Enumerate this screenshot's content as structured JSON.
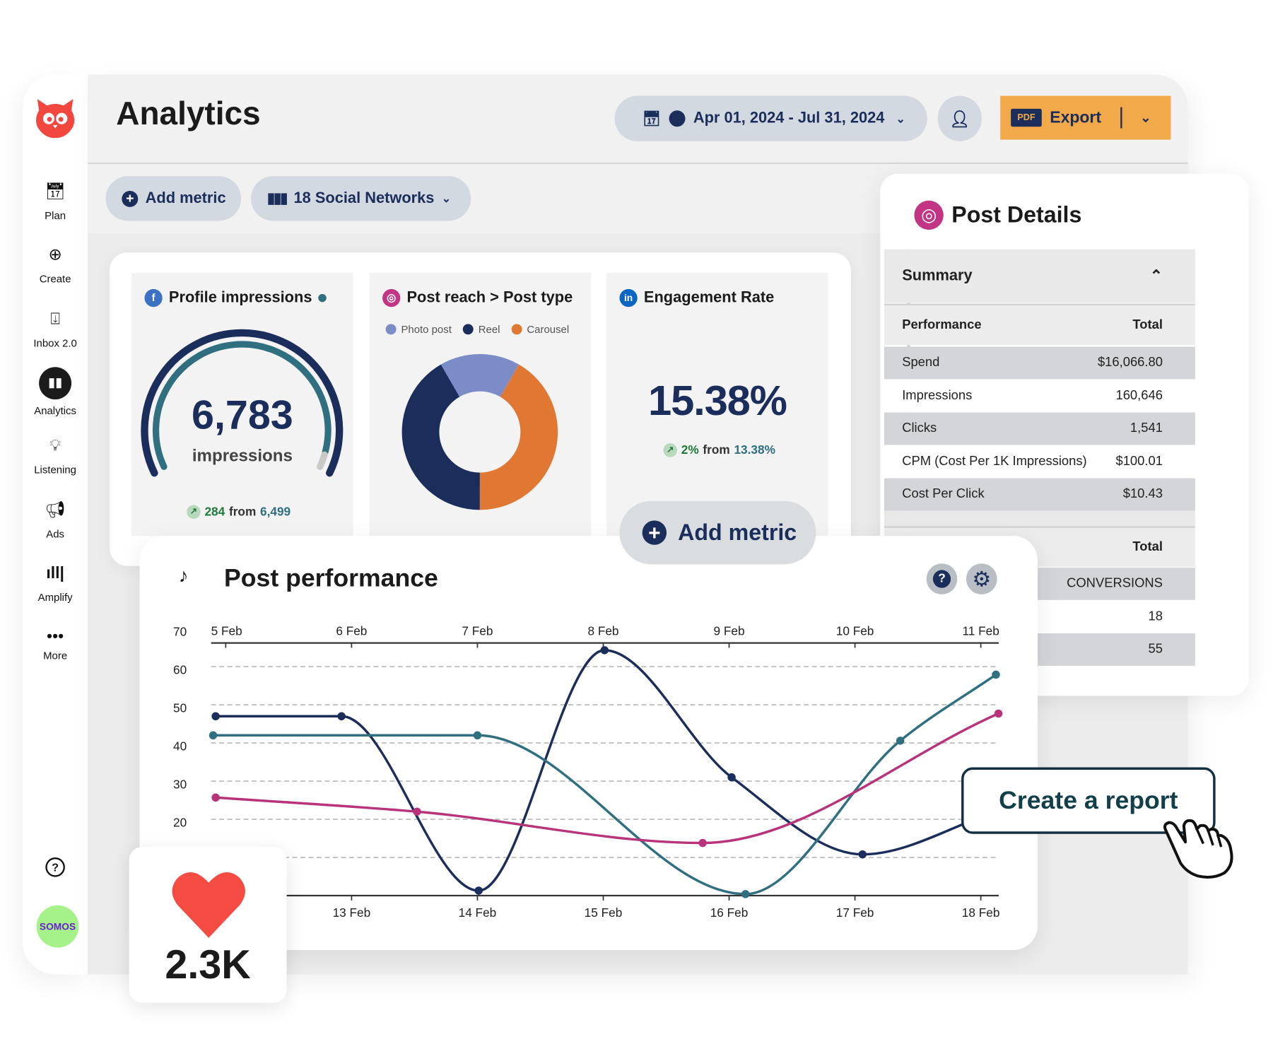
{
  "app": {
    "title": "Analytics",
    "logo": "hootsuite-owl-logo"
  },
  "sidebar": {
    "items": [
      {
        "label": "Plan",
        "icon": "calendar-icon"
      },
      {
        "label": "Create",
        "icon": "plus-circle-icon"
      },
      {
        "label": "Inbox 2.0",
        "icon": "inbox-icon"
      },
      {
        "label": "Analytics",
        "icon": "bar-chart-icon",
        "active": true
      },
      {
        "label": "Listening",
        "icon": "lightbulb-icon"
      },
      {
        "label": "Ads",
        "icon": "megaphone-icon"
      },
      {
        "label": "Amplify",
        "icon": "amplify-icon"
      },
      {
        "label": "More",
        "icon": "more-icon"
      }
    ],
    "help_icon": "question-icon",
    "avatar_text": "SOMOS"
  },
  "header": {
    "date_range": "Apr 01, 2024 - Jul 31, 2024",
    "export_label": "Export",
    "pdf_badge": "PDF"
  },
  "toolbar": {
    "add_metric": "Add metric",
    "networks": "18 Social Networks"
  },
  "cards": {
    "impressions": {
      "title": "Profile impressions",
      "value": "6,783",
      "unit": "impressions",
      "change": "284",
      "from_word": "from",
      "previous": "6,499",
      "gauge_fraction": 0.95
    },
    "post_reach": {
      "title": "Post reach > Post type",
      "legend": [
        "Photo post",
        "Reel",
        "Carousel"
      ]
    },
    "engagement": {
      "title": "Engagement Rate",
      "value": "15.38%",
      "change": "2%",
      "from_word": "from",
      "previous": "13.38%"
    },
    "add_metric": "Add metric"
  },
  "post_details": {
    "title": "Post Details",
    "summary": "Summary",
    "header": {
      "label": "Performance",
      "total": "Total"
    },
    "rows": [
      {
        "label": "Spend",
        "value": "$16,066.80"
      },
      {
        "label": "Impressions",
        "value": "160,646"
      },
      {
        "label": "Clicks",
        "value": "1,541"
      },
      {
        "label": "CPM (Cost Per 1K Impressions)",
        "value": "$100.01"
      },
      {
        "label": "Cost Per Click",
        "value": "$10.43"
      }
    ],
    "second_header": {
      "total": "Total"
    },
    "second_rows": [
      "CONVERSIONS",
      "18",
      "55"
    ]
  },
  "post_performance": {
    "title": "Post performance",
    "help_icon": "question-icon",
    "settings_icon": "gear-icon"
  },
  "likes": {
    "value": "2.3K",
    "icon": "heart-icon"
  },
  "cta": {
    "label": "Create a report",
    "icon": "hand-pointer-icon"
  },
  "colors": {
    "navy": "#1b2d5b",
    "teal": "#2f6f80",
    "pink": "#b8337a",
    "photo": "#7b8cc7",
    "orange": "#e07733",
    "export": "#f2a94a",
    "owl": "#f2473f"
  },
  "chart_data": [
    {
      "type": "pie",
      "variant": "donut",
      "categories": [
        "Photo post",
        "Reel",
        "Carousel"
      ],
      "values": [
        16.7,
        41.7,
        41.7
      ],
      "colors": [
        "#7b8cc7",
        "#1b2d5b",
        "#e07733"
      ]
    },
    {
      "type": "line",
      "grid": true,
      "x_ticks_top": [
        "5 Feb",
        "6 Feb",
        "7 Feb",
        "8 Feb",
        "9 Feb",
        "10 Feb",
        "11 Feb"
      ],
      "x_ticks_bottom": [
        "13 Feb",
        "14 Feb",
        "15 Feb",
        "16 Feb",
        "17 Feb",
        "18 Feb"
      ],
      "y_ticks": [
        "70",
        "60",
        "50",
        "40",
        "30",
        "20"
      ],
      "ylim": [
        0,
        70
      ],
      "series": [
        {
          "color": "#1b2d5b",
          "points": [
            [
              -0.08,
              47
            ],
            [
              0.92,
              47
            ],
            [
              2.01,
              1.3
            ],
            [
              3.01,
              64.3
            ],
            [
              4.02,
              31
            ],
            [
              5.06,
              10.8
            ],
            [
              6.12,
              22
            ]
          ]
        },
        {
          "color": "#2f6f80",
          "points": [
            [
              -0.1,
              42
            ],
            [
              2.0,
              42
            ],
            [
              4.13,
              0.4
            ],
            [
              5.36,
              40.6
            ],
            [
              6.12,
              57.9
            ]
          ]
        },
        {
          "color": "#b8337a",
          "points": [
            [
              -0.08,
              25.7
            ],
            [
              1.52,
              22
            ],
            [
              3.79,
              13.8
            ],
            [
              6.14,
              47.7
            ]
          ]
        }
      ]
    }
  ]
}
